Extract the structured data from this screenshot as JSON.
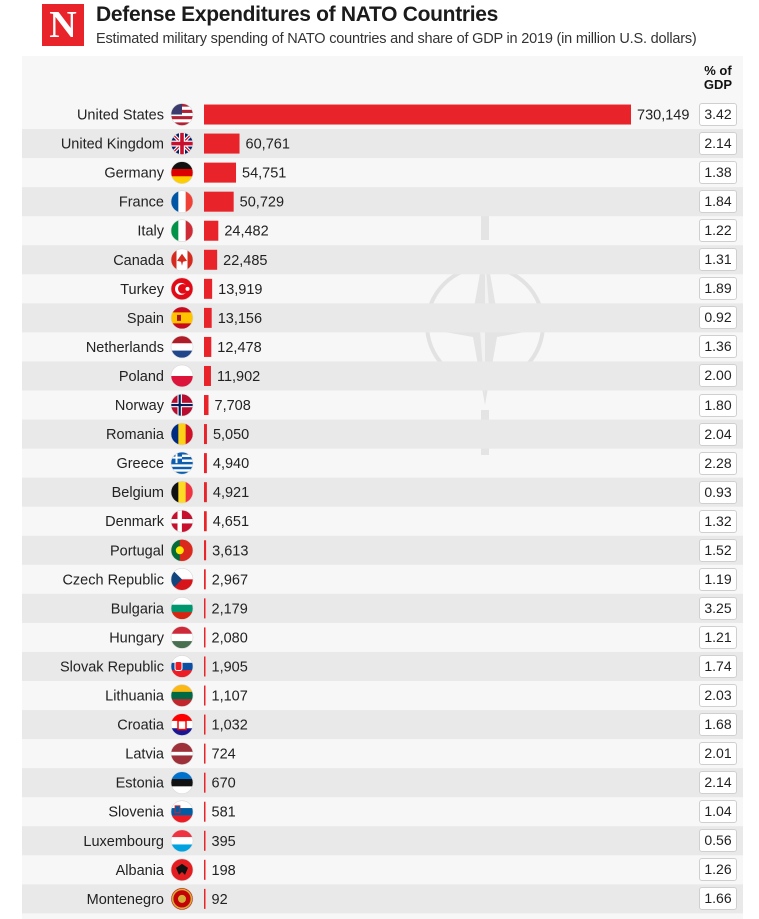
{
  "logo_letter": "N",
  "header": {
    "title": "Defense Expenditures of NATO Countries",
    "subtitle": "Estimated military spending of NATO countries and share of GDP in 2019 (in million U.S. dollars)",
    "gdp_column_label": "% of GDP"
  },
  "colors": {
    "bar": "#e8232a",
    "stripe": "#e9e9e9",
    "panel": "#f7f7f7"
  },
  "chart_data": {
    "type": "bar",
    "orientation": "horizontal",
    "title": "Defense Expenditures of NATO Countries",
    "subtitle": "Estimated military spending of NATO countries and share of GDP in 2019 (in million U.S. dollars)",
    "categories": [
      "United States",
      "United Kingdom",
      "Germany",
      "France",
      "Italy",
      "Canada",
      "Turkey",
      "Spain",
      "Netherlands",
      "Poland",
      "Norway",
      "Romania",
      "Greece",
      "Belgium",
      "Denmark",
      "Portugal",
      "Czech Republic",
      "Bulgaria",
      "Hungary",
      "Slovak Republic",
      "Lithuania",
      "Croatia",
      "Latvia",
      "Estonia",
      "Slovenia",
      "Luxembourg",
      "Albania",
      "Montenegro"
    ],
    "values": [
      730149,
      60761,
      54751,
      50729,
      24482,
      22485,
      13919,
      13156,
      12478,
      11902,
      7708,
      5050,
      4940,
      4921,
      4651,
      3613,
      2967,
      2179,
      2080,
      1905,
      1107,
      1032,
      724,
      670,
      581,
      395,
      198,
      92
    ],
    "value_labels": [
      "730,149",
      "60,761",
      "54,751",
      "50,729",
      "24,482",
      "22,485",
      "13,919",
      "13,156",
      "12,478",
      "11,902",
      "7,708",
      "5,050",
      "4,940",
      "4,921",
      "4,651",
      "3,613",
      "2,967",
      "2,179",
      "2,080",
      "1,905",
      "1,107",
      "1,032",
      "724",
      "670",
      "581",
      "395",
      "198",
      "92"
    ],
    "gdp_share_labels": [
      "3.42",
      "2.14",
      "1.38",
      "1.84",
      "1.22",
      "1.31",
      "1.89",
      "0.92",
      "1.36",
      "2.00",
      "1.80",
      "2.04",
      "2.28",
      "0.93",
      "1.32",
      "1.52",
      "1.19",
      "3.25",
      "1.21",
      "1.74",
      "2.03",
      "1.68",
      "2.01",
      "2.14",
      "1.04",
      "0.56",
      "1.26",
      "1.66"
    ],
    "flag_icons": [
      "us-flag-icon",
      "uk-flag-icon",
      "germany-flag-icon",
      "france-flag-icon",
      "italy-flag-icon",
      "canada-flag-icon",
      "turkey-flag-icon",
      "spain-flag-icon",
      "netherlands-flag-icon",
      "poland-flag-icon",
      "norway-flag-icon",
      "romania-flag-icon",
      "greece-flag-icon",
      "belgium-flag-icon",
      "denmark-flag-icon",
      "portugal-flag-icon",
      "czech-flag-icon",
      "bulgaria-flag-icon",
      "hungary-flag-icon",
      "slovakia-flag-icon",
      "lithuania-flag-icon",
      "croatia-flag-icon",
      "latvia-flag-icon",
      "estonia-flag-icon",
      "slovenia-flag-icon",
      "luxembourg-flag-icon",
      "albania-flag-icon",
      "montenegro-flag-icon"
    ],
    "xlim": [
      0,
      730149
    ],
    "grid": false,
    "legend": "none"
  }
}
